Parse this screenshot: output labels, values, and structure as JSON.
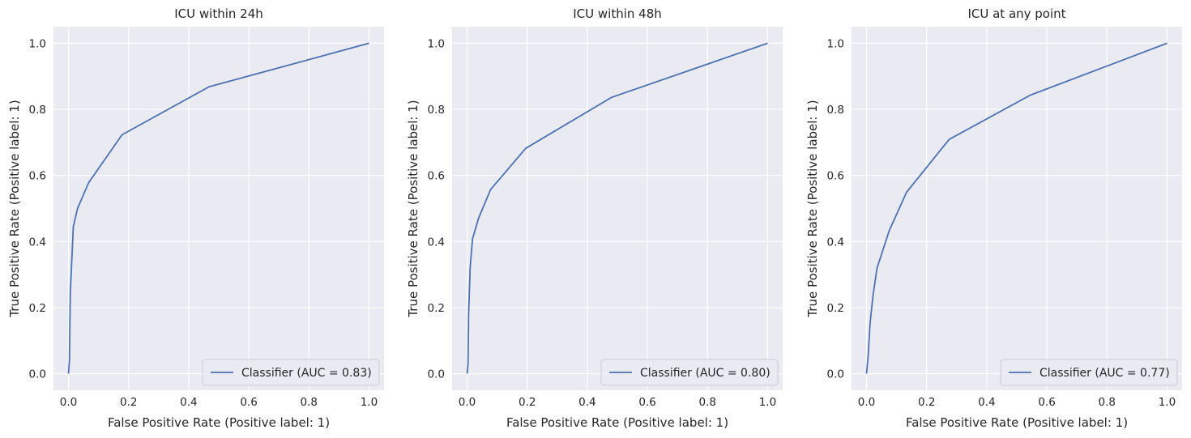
{
  "style": {
    "axes_face": "#eaeaf2",
    "grid": "#ffffff",
    "line": "#4c72b0",
    "text": "#262626"
  },
  "chart_data": [
    {
      "type": "line",
      "title": "ICU within 24h",
      "xlabel": "False Positive Rate (Positive label: 1)",
      "ylabel": "True Positive Rate (Positive label: 1)",
      "xlim": [
        -0.05,
        1.05
      ],
      "ylim": [
        -0.05,
        1.05
      ],
      "xticks": [
        "0.0",
        "0.2",
        "0.4",
        "0.6",
        "0.8",
        "1.0"
      ],
      "yticks": [
        "0.0",
        "0.2",
        "0.4",
        "0.6",
        "0.8",
        "1.0"
      ],
      "grid": true,
      "legend_position": "lower-right",
      "series": [
        {
          "name": "Classifier (AUC = 0.83)",
          "x": [
            0.0,
            0.003,
            0.006,
            0.016,
            0.03,
            0.067,
            0.178,
            0.467,
            1.0
          ],
          "y": [
            0.0,
            0.04,
            0.245,
            0.445,
            0.5,
            0.578,
            0.723,
            0.868,
            1.0
          ]
        }
      ]
    },
    {
      "type": "line",
      "title": "ICU within 48h",
      "xlabel": "False Positive Rate (Positive label: 1)",
      "ylabel": "True Positive Rate (Positive label: 1)",
      "xlim": [
        -0.05,
        1.05
      ],
      "ylim": [
        -0.05,
        1.05
      ],
      "xticks": [
        "0.0",
        "0.2",
        "0.4",
        "0.6",
        "0.8",
        "1.0"
      ],
      "yticks": [
        "0.0",
        "0.2",
        "0.4",
        "0.6",
        "0.8",
        "1.0"
      ],
      "grid": true,
      "legend_position": "lower-right",
      "series": [
        {
          "name": "Classifier (AUC = 0.80)",
          "x": [
            0.0,
            0.003,
            0.005,
            0.01,
            0.018,
            0.038,
            0.078,
            0.195,
            0.48,
            1.0
          ],
          "y": [
            0.0,
            0.03,
            0.18,
            0.32,
            0.408,
            0.47,
            0.557,
            0.682,
            0.836,
            1.0
          ]
        }
      ]
    },
    {
      "type": "line",
      "title": "ICU at any point",
      "xlabel": "False Positive Rate (Positive label: 1)",
      "ylabel": "True Positive Rate (Positive label: 1)",
      "xlim": [
        -0.05,
        1.05
      ],
      "ylim": [
        -0.05,
        1.05
      ],
      "xticks": [
        "0.0",
        "0.2",
        "0.4",
        "0.6",
        "0.8",
        "1.0"
      ],
      "yticks": [
        "0.0",
        "0.2",
        "0.4",
        "0.6",
        "0.8",
        "1.0"
      ],
      "grid": true,
      "legend_position": "lower-right",
      "series": [
        {
          "name": "Classifier (AUC = 0.77)",
          "x": [
            0.0,
            0.005,
            0.012,
            0.022,
            0.035,
            0.075,
            0.133,
            0.275,
            0.545,
            1.0
          ],
          "y": [
            0.0,
            0.05,
            0.155,
            0.24,
            0.32,
            0.432,
            0.549,
            0.709,
            0.843,
            1.0
          ]
        }
      ]
    }
  ]
}
